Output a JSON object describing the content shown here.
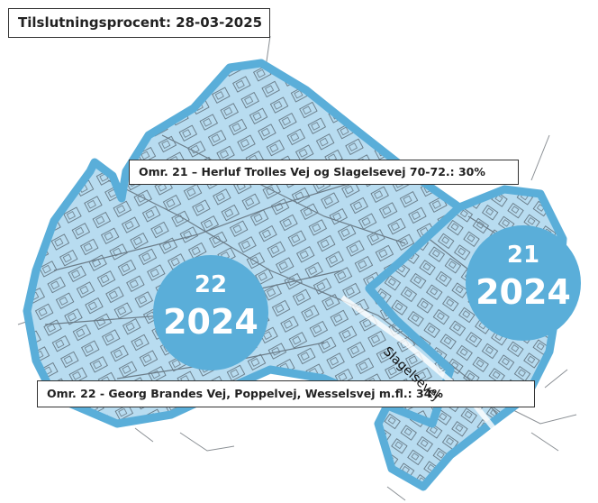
{
  "title": "Tilslutningsprocent: 28-03-2025",
  "areas": [
    {
      "label": "Omr. 21 – Herluf Trolles Vej og Slagelsevej 70-72.: 30%",
      "number": "21",
      "year": "2024",
      "percent": 30
    },
    {
      "label": "Omr. 22 - Georg Brandes Vej, Poppelvej, Wesselsvej m.fl.: 34%",
      "number": "22",
      "year": "2024",
      "percent": 34
    }
  ],
  "street_label": "Slagelsevej",
  "colors": {
    "area_fill": "#b8dcf0",
    "area_border": "#5aaed9",
    "badge": "#5aaed9",
    "streets": "#6b7c88"
  }
}
